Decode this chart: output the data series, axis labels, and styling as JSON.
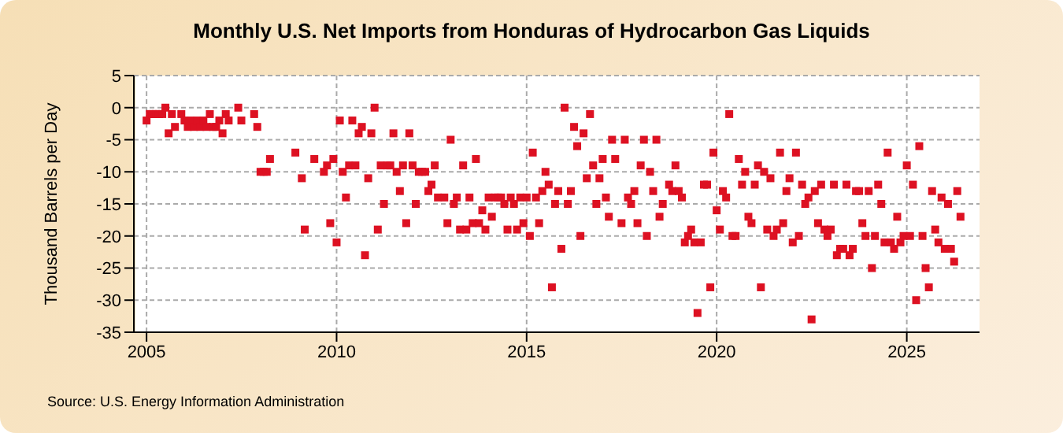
{
  "chart_data": {
    "type": "scatter",
    "title": "Monthly U.S. Net Imports from Honduras of Hydrocarbon Gas Liquids",
    "ylabel": "Thousand Barrels per Day",
    "annotations": [
      "Source: U.S. Energy Information Administration"
    ],
    "x": [
      "2005-01",
      "2005-02",
      "2005-03",
      "2005-04",
      "2005-05",
      "2005-06",
      "2005-07",
      "2005-08",
      "2005-09",
      "2005-10",
      "2005-12",
      "2006-01",
      "2006-02",
      "2006-03",
      "2006-04",
      "2006-05",
      "2006-06",
      "2006-07",
      "2006-08",
      "2006-09",
      "2006-10",
      "2006-11",
      "2006-12",
      "2007-01",
      "2007-02",
      "2007-03",
      "2007-06",
      "2007-07",
      "2007-11",
      "2007-12",
      "2008-01",
      "2008-02",
      "2008-03",
      "2008-04",
      "2008-12",
      "2009-02",
      "2009-03",
      "2009-06",
      "2009-09",
      "2009-10",
      "2009-11",
      "2009-12",
      "2010-01",
      "2010-02",
      "2010-03",
      "2010-04",
      "2010-05",
      "2010-06",
      "2010-07",
      "2010-08",
      "2010-09",
      "2010-10",
      "2010-11",
      "2010-12",
      "2011-01",
      "2011-02",
      "2011-03",
      "2011-04",
      "2011-05",
      "2011-06",
      "2011-07",
      "2011-08",
      "2011-09",
      "2011-10",
      "2011-11",
      "2011-12",
      "2012-01",
      "2012-02",
      "2012-03",
      "2012-04",
      "2012-05",
      "2012-06",
      "2012-07",
      "2012-08",
      "2012-09",
      "2012-11",
      "2012-12",
      "2013-01",
      "2013-02",
      "2013-03",
      "2013-04",
      "2013-05",
      "2013-06",
      "2013-07",
      "2013-08",
      "2013-09",
      "2013-10",
      "2013-11",
      "2013-12",
      "2014-01",
      "2014-02",
      "2014-03",
      "2014-04",
      "2014-05",
      "2014-06",
      "2014-07",
      "2014-08",
      "2014-09",
      "2014-10",
      "2014-11",
      "2014-12",
      "2015-01",
      "2015-02",
      "2015-03",
      "2015-04",
      "2015-05",
      "2015-06",
      "2015-07",
      "2015-08",
      "2015-09",
      "2015-10",
      "2015-11",
      "2015-12",
      "2016-01",
      "2016-02",
      "2016-03",
      "2016-04",
      "2016-05",
      "2016-06",
      "2016-07",
      "2016-08",
      "2016-09",
      "2016-10",
      "2016-11",
      "2016-12",
      "2017-01",
      "2017-02",
      "2017-03",
      "2017-04",
      "2017-05",
      "2017-07",
      "2017-08",
      "2017-09",
      "2017-10",
      "2017-11",
      "2017-12",
      "2018-01",
      "2018-02",
      "2018-03",
      "2018-04",
      "2018-05",
      "2018-06",
      "2018-07",
      "2018-08",
      "2018-10",
      "2018-11",
      "2018-12",
      "2019-01",
      "2019-02",
      "2019-03",
      "2019-04",
      "2019-05",
      "2019-06",
      "2019-07",
      "2019-08",
      "2019-09",
      "2019-10",
      "2019-11",
      "2019-12",
      "2020-01",
      "2020-02",
      "2020-03",
      "2020-04",
      "2020-05",
      "2020-06",
      "2020-07",
      "2020-08",
      "2020-09",
      "2020-10",
      "2020-11",
      "2020-12",
      "2021-01",
      "2021-02",
      "2021-03",
      "2021-04",
      "2021-05",
      "2021-06",
      "2021-07",
      "2021-08",
      "2021-09",
      "2021-10",
      "2021-11",
      "2021-12",
      "2022-01",
      "2022-02",
      "2022-03",
      "2022-04",
      "2022-05",
      "2022-06",
      "2022-07",
      "2022-08",
      "2022-09",
      "2022-10",
      "2022-11",
      "2022-12",
      "2023-01",
      "2023-02",
      "2023-03",
      "2023-04",
      "2023-05",
      "2023-06",
      "2023-07",
      "2023-08",
      "2023-09",
      "2023-10",
      "2023-11",
      "2023-12",
      "2024-01",
      "2024-02",
      "2024-03",
      "2024-04",
      "2024-05",
      "2024-06",
      "2024-07",
      "2024-08",
      "2024-09",
      "2024-10",
      "2024-11",
      "2024-12",
      "2025-01",
      "2025-02",
      "2025-03",
      "2025-04",
      "2025-05",
      "2025-06",
      "2025-07",
      "2025-08",
      "2025-09",
      "2025-10",
      "2025-11",
      "2025-12",
      "2026-01",
      "2026-02",
      "2026-03",
      "2026-04",
      "2026-05",
      "2026-06"
    ],
    "series": [
      {
        "color": "#dd1122",
        "values": [
          -2,
          -1,
          -1,
          -1,
          -1,
          -1,
          0,
          -4,
          -1,
          -3,
          -1,
          -2,
          -3,
          -2,
          -3,
          -2,
          -3,
          -2,
          -3,
          -1,
          -3,
          -3,
          -2,
          -4,
          -1,
          -2,
          0,
          -2,
          -1,
          -3,
          -10,
          -10,
          -10,
          -8,
          -7,
          -11,
          -19,
          -8,
          -10,
          -9,
          -18,
          -8,
          -21,
          -2,
          -10,
          -14,
          -9,
          -2,
          -9,
          -4,
          -3,
          -23,
          -11,
          -4,
          0,
          -19,
          -9,
          -15,
          -9,
          -9,
          -4,
          -10,
          -13,
          -9,
          -18,
          -4,
          -9,
          -15,
          -10,
          -10,
          -10,
          -13,
          -12,
          -9,
          -14,
          -14,
          -18,
          -5,
          -15,
          -14,
          -19,
          -9,
          -19,
          -14,
          -18,
          -8,
          -18,
          -16,
          -19,
          -14,
          -17,
          -14,
          -14,
          -14,
          -15,
          -19,
          -14,
          -15,
          -19,
          -14,
          -18,
          -14,
          -20,
          -7,
          -14,
          -18,
          -13,
          -10,
          -12,
          -28,
          -15,
          -13,
          -22,
          0,
          -15,
          -13,
          -3,
          -6,
          -20,
          -4,
          -11,
          -1,
          -9,
          -15,
          -11,
          -8,
          -14,
          -17,
          -5,
          -8,
          -18,
          -5,
          -14,
          -15,
          -13,
          -18,
          -9,
          -5,
          -20,
          -10,
          -13,
          -5,
          -17,
          -15,
          -12,
          -13,
          -9,
          -13,
          -14,
          -21,
          -20,
          -19,
          -21,
          -32,
          -21,
          -12,
          -12,
          -28,
          -7,
          -16,
          -19,
          -13,
          -14,
          -1,
          -20,
          -20,
          -8,
          -12,
          -10,
          -17,
          -18,
          -12,
          -9,
          -28,
          -10,
          -19,
          -11,
          -20,
          -19,
          -7,
          -18,
          -13,
          -11,
          -21,
          -7,
          -20,
          -12,
          -15,
          -14,
          -33,
          -13,
          -18,
          -12,
          -19,
          -20,
          -19,
          -12,
          -23,
          -22,
          -22,
          -12,
          -23,
          -22,
          -13,
          -13,
          -18,
          -20,
          -13,
          -25,
          -20,
          -12,
          -15,
          -21,
          -7,
          -21,
          -22,
          -17,
          -21,
          -20,
          -9,
          -20,
          -12,
          -30,
          -6,
          -20,
          -25,
          -28,
          -13,
          -19,
          -21,
          -14,
          -22,
          -15,
          -22,
          -24,
          -13,
          -17
        ]
      }
    ],
    "xlim": [
      "2004-09",
      "2026-12"
    ],
    "xticks": [
      "2005",
      "2010",
      "2015",
      "2020",
      "2025"
    ],
    "ylim": [
      -35,
      5
    ],
    "yticks": [
      -35,
      -30,
      -25,
      -20,
      -15,
      -10,
      -5,
      0,
      5
    ],
    "grid": true,
    "marker": "square",
    "legend": false
  }
}
